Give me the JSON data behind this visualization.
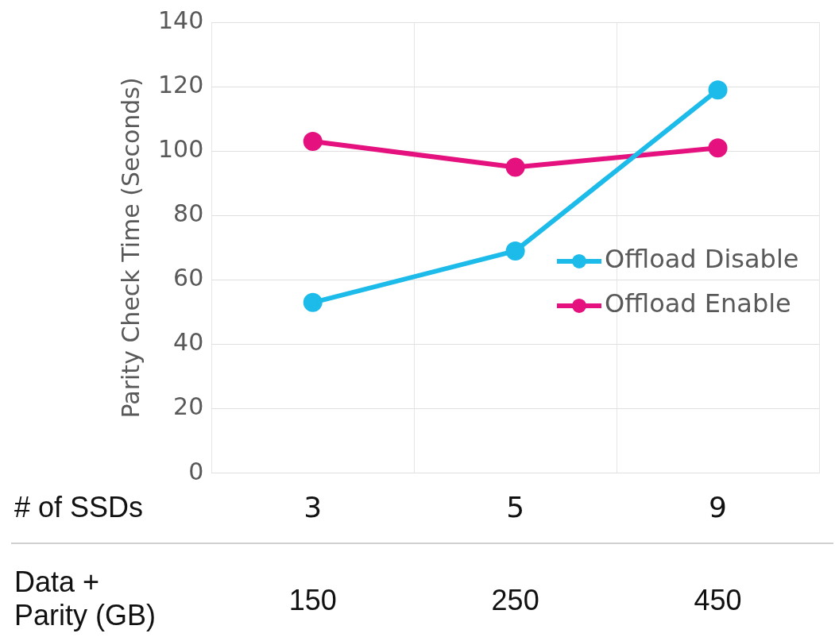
{
  "chart_data": {
    "type": "line",
    "ylabel": "Parity Check Time (Seconds)",
    "categories": [
      "3",
      "5",
      "9"
    ],
    "series": [
      {
        "name": "Offload Disable",
        "color": "#1cbbe9",
        "values": [
          53,
          69,
          119
        ]
      },
      {
        "name": "Offload Enable",
        "color": "#e4117f",
        "values": [
          103,
          95,
          101
        ]
      }
    ],
    "ylim": [
      0,
      140
    ],
    "yticks": [
      0,
      20,
      40,
      60,
      80,
      100,
      120,
      140
    ],
    "grid": true,
    "legend": "right",
    "marker": "circle",
    "line_style": "solid",
    "annotations": [
      "# of SSDs",
      "Data + Parity (GB)",
      "150",
      "250",
      "450"
    ]
  }
}
